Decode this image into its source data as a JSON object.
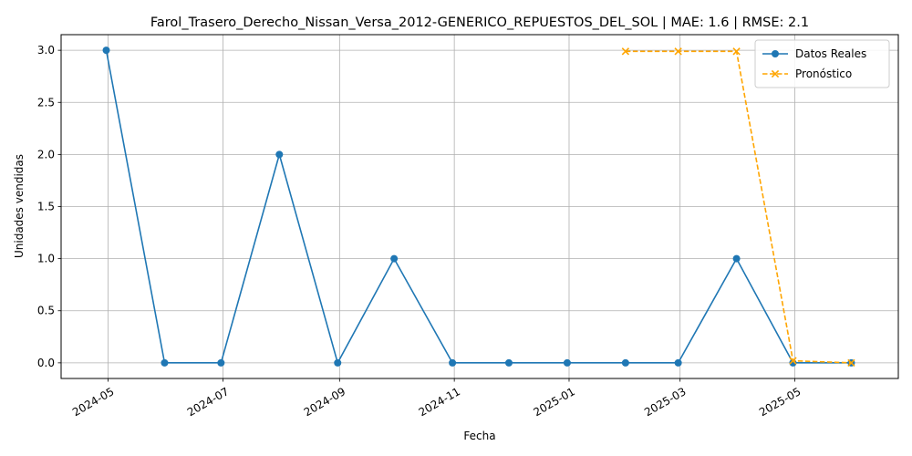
{
  "chart_data": {
    "type": "line",
    "title": "Farol_Trasero_Derecho_Nissan_Versa_2012-GENERICO_REPUESTOS_DEL_SOL | MAE: 1.6 | RMSE: 2.1",
    "xlabel": "Fecha",
    "ylabel": "Unidades vendidas",
    "xlim": [
      "2024-04-06",
      "2025-06-25"
    ],
    "ylim": [
      -0.15,
      3.15
    ],
    "grid": true,
    "legend_position": "upper-right",
    "x_ticks": [
      "2024-05",
      "2024-07",
      "2024-09",
      "2024-11",
      "2025-01",
      "2025-03",
      "2025-05"
    ],
    "x_tick_dates": [
      "2024-05-01",
      "2024-07-01",
      "2024-09-01",
      "2024-11-01",
      "2025-01-01",
      "2025-03-01",
      "2025-05-01"
    ],
    "y_ticks": [
      "0.0",
      "0.5",
      "1.0",
      "1.5",
      "2.0",
      "2.5",
      "3.0"
    ],
    "series": [
      {
        "name": "Datos Reales",
        "color": "#1f77b4",
        "line_style": "solid",
        "marker": "circle",
        "x": [
          "2024-04-30",
          "2024-05-31",
          "2024-06-30",
          "2024-07-31",
          "2024-08-31",
          "2024-09-30",
          "2024-10-31",
          "2024-11-30",
          "2024-12-31",
          "2025-01-31",
          "2025-02-28",
          "2025-03-31",
          "2025-04-30",
          "2025-05-31"
        ],
        "y": [
          3,
          0,
          0,
          2,
          0,
          1,
          0,
          0,
          0,
          0,
          0,
          1,
          0,
          0
        ]
      },
      {
        "name": "Pronóstico",
        "color": "#ffa500",
        "line_style": "dashed",
        "marker": "x",
        "x": [
          "2025-01-31",
          "2025-02-28",
          "2025-03-31",
          "2025-04-30",
          "2025-05-31"
        ],
        "y": [
          2.99,
          2.99,
          2.99,
          0.02,
          0.0
        ]
      }
    ]
  }
}
